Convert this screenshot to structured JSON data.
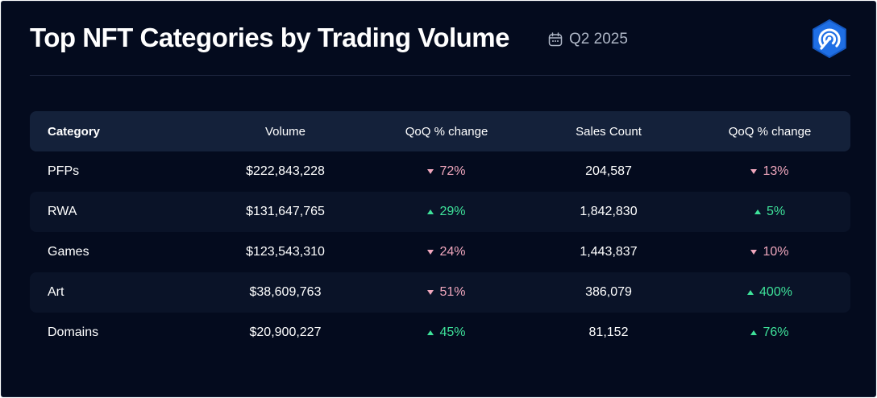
{
  "header": {
    "title": "Top NFT Categories by Trading Volume",
    "period": "Q2 2025",
    "calendar_icon": "calendar-icon",
    "logo_icon": "brand-logo-icon"
  },
  "colors": {
    "background": "#040b1e",
    "header_row": "#14213a",
    "alt_row": "#0a1328",
    "up": "#3ee29a",
    "down": "#f0a7bd",
    "logo": "#1f6fe5"
  },
  "chart_data": {
    "type": "table",
    "title": "Top NFT Categories by Trading Volume",
    "subtitle": "Q2 2025",
    "columns": [
      "Category",
      "Volume",
      "QoQ % change",
      "Sales Count",
      "QoQ % change"
    ],
    "rows": [
      {
        "category": "PFPs",
        "volume": "$222,843,228",
        "volume_change": {
          "dir": "down",
          "text": "72%"
        },
        "sales": "204,587",
        "sales_change": {
          "dir": "down",
          "text": "13%"
        }
      },
      {
        "category": "RWA",
        "volume": "$131,647,765",
        "volume_change": {
          "dir": "up",
          "text": "29%"
        },
        "sales": "1,842,830",
        "sales_change": {
          "dir": "up",
          "text": "5%"
        }
      },
      {
        "category": "Games",
        "volume": "$123,543,310",
        "volume_change": {
          "dir": "down",
          "text": "24%"
        },
        "sales": "1,443,837",
        "sales_change": {
          "dir": "down",
          "text": "10%"
        }
      },
      {
        "category": "Art",
        "volume": "$38,609,763",
        "volume_change": {
          "dir": "down",
          "text": "51%"
        },
        "sales": "386,079",
        "sales_change": {
          "dir": "up",
          "text": "400%"
        }
      },
      {
        "category": "Domains",
        "volume": "$20,900,227",
        "volume_change": {
          "dir": "up",
          "text": "45%"
        },
        "sales": "81,152",
        "sales_change": {
          "dir": "up",
          "text": "76%"
        }
      }
    ]
  }
}
